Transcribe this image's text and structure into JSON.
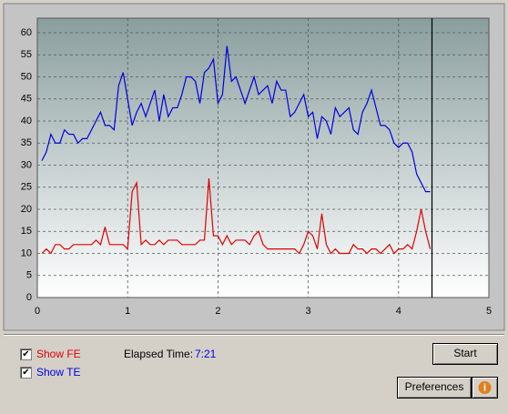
{
  "chart_data": {
    "type": "line",
    "x": [
      0.05,
      0.1,
      0.15,
      0.2,
      0.25,
      0.3,
      0.35,
      0.4,
      0.45,
      0.5,
      0.55,
      0.6,
      0.65,
      0.7,
      0.75,
      0.8,
      0.85,
      0.9,
      0.95,
      1.0,
      1.05,
      1.1,
      1.15,
      1.2,
      1.25,
      1.3,
      1.35,
      1.4,
      1.45,
      1.5,
      1.55,
      1.6,
      1.65,
      1.7,
      1.75,
      1.8,
      1.85,
      1.9,
      1.95,
      2.0,
      2.05,
      2.1,
      2.15,
      2.2,
      2.25,
      2.3,
      2.35,
      2.4,
      2.45,
      2.5,
      2.55,
      2.6,
      2.65,
      2.7,
      2.75,
      2.8,
      2.85,
      2.9,
      2.95,
      3.0,
      3.05,
      3.1,
      3.15,
      3.2,
      3.25,
      3.3,
      3.35,
      3.4,
      3.45,
      3.5,
      3.55,
      3.6,
      3.65,
      3.7,
      3.75,
      3.8,
      3.85,
      3.9,
      3.95,
      4.0,
      4.05,
      4.1,
      4.15,
      4.2,
      4.25,
      4.3,
      4.35
    ],
    "series": [
      {
        "name": "TE",
        "color": "#0000e0",
        "values": [
          31,
          33,
          37,
          35,
          35,
          38,
          37,
          37,
          35,
          36,
          36,
          38,
          40,
          42,
          39,
          39,
          38,
          48,
          51,
          45,
          39,
          42,
          44,
          41,
          44,
          47,
          40,
          46,
          41,
          43,
          43,
          46,
          50,
          50,
          49,
          44,
          51,
          52,
          54,
          44,
          46,
          57,
          49,
          50,
          47,
          44,
          47,
          50,
          46,
          47,
          48,
          44,
          49,
          47,
          47,
          41,
          42,
          44,
          46,
          41,
          42,
          36,
          41,
          40,
          37,
          43,
          41,
          42,
          43,
          38,
          37,
          42,
          44,
          47,
          43,
          39,
          39,
          38,
          35,
          34,
          35,
          35,
          33,
          28,
          26,
          24,
          24
        ]
      },
      {
        "name": "FE",
        "color": "#e00000",
        "values": [
          10,
          11,
          10,
          12,
          12,
          11,
          11,
          12,
          12,
          12,
          12,
          12,
          13,
          12,
          16,
          12,
          12,
          12,
          12,
          11,
          24,
          26,
          12,
          13,
          12,
          12,
          13,
          12,
          13,
          13,
          13,
          12,
          12,
          12,
          12,
          13,
          13,
          27,
          14,
          14,
          12,
          14,
          12,
          13,
          13,
          13,
          12,
          14,
          15,
          12,
          11,
          11,
          11,
          11,
          11,
          11,
          11,
          10,
          12,
          15,
          14,
          11,
          19,
          12,
          10,
          11,
          10,
          10,
          10,
          12,
          11,
          11,
          10,
          11,
          11,
          10,
          11,
          12,
          10,
          11,
          11,
          12,
          11,
          15,
          20,
          15,
          11
        ]
      }
    ],
    "xlim": [
      0,
      5
    ],
    "xticks": [
      0,
      1,
      2,
      3,
      4,
      5
    ],
    "ylim": [
      0,
      63.3
    ],
    "yticks": [
      0,
      5,
      10,
      15,
      20,
      25,
      30,
      35,
      40,
      45,
      50,
      55,
      60
    ],
    "grid": true,
    "cursor_x": 4.37
  },
  "controls": {
    "show_fe": "Show FE",
    "show_te": "Show TE",
    "elapsed_label": "Elapsed Time:",
    "elapsed_value": "7:21",
    "start": "Start",
    "preferences": "Preferences"
  }
}
